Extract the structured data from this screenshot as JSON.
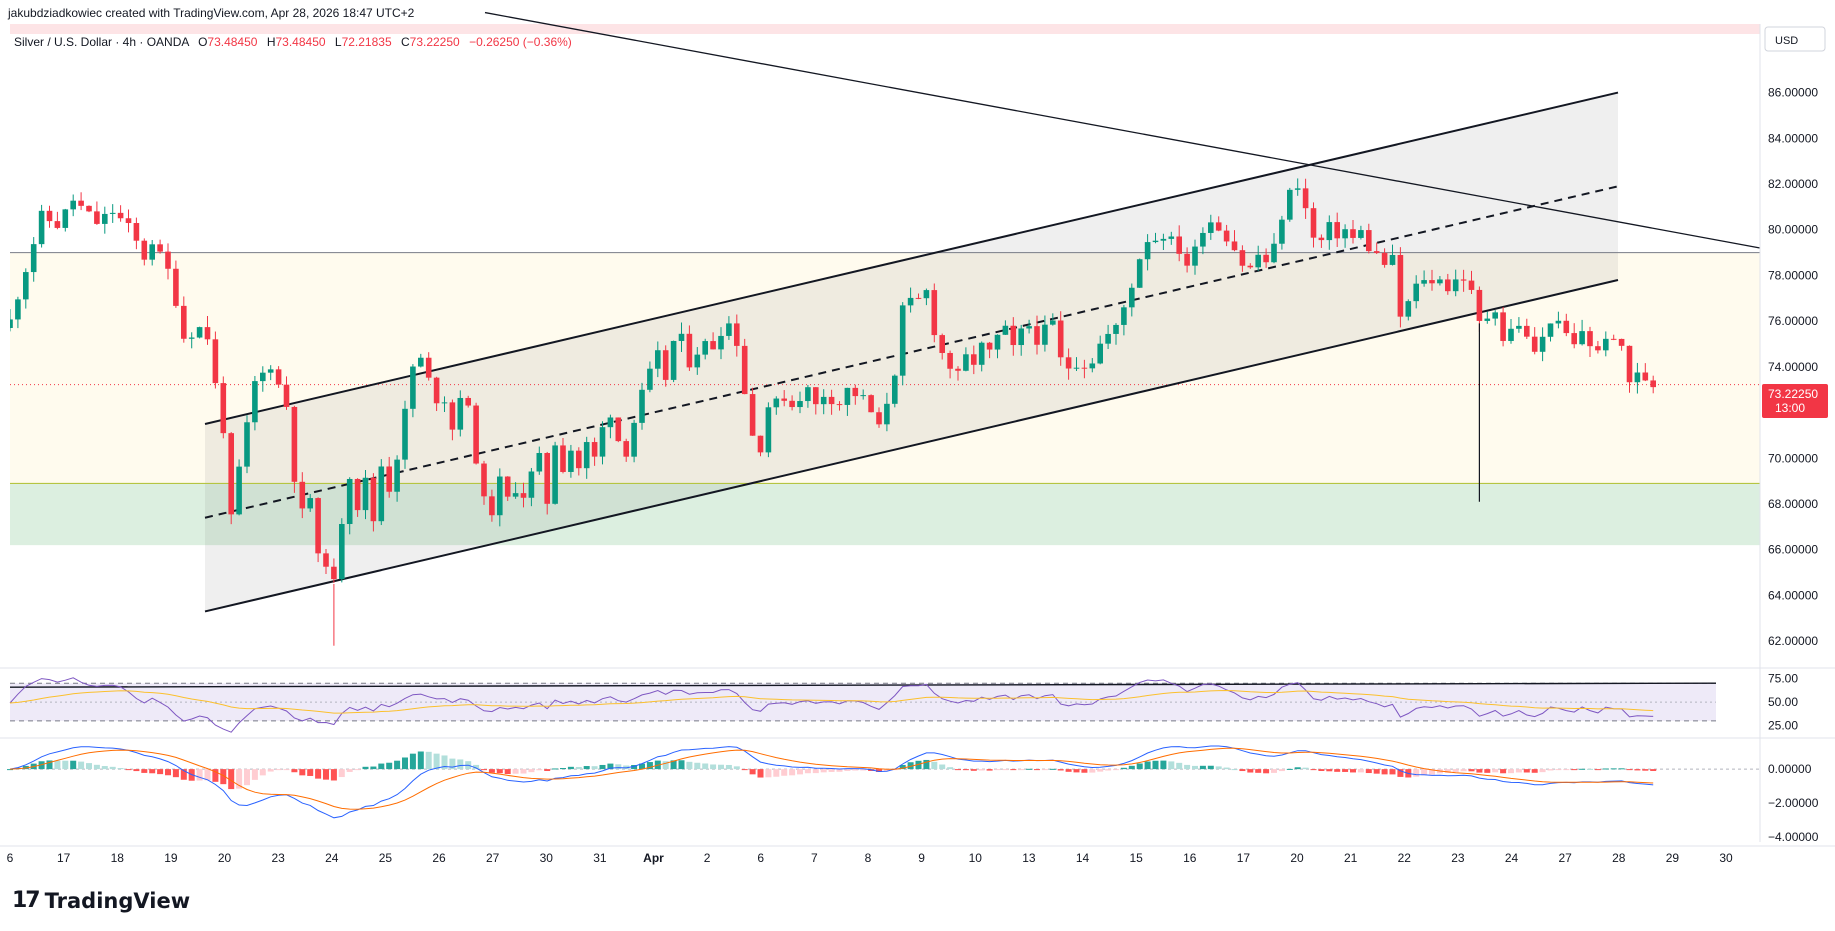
{
  "header": {
    "credit": "jakubdziadkowiec created with TradingView.com, Apr 28, 2026 18:47 UTC+2"
  },
  "symbol_line": {
    "name": "Silver / U.S. Dollar · 4h · OANDA",
    "o_label": "O",
    "o": "73.48450",
    "h_label": "H",
    "h": "73.48450",
    "l_label": "L",
    "l": "72.21835",
    "c_label": "C",
    "c": "73.22250",
    "change": "−0.26250 (−0.36%)"
  },
  "currency": "USD",
  "last_price": {
    "value": "73.22250",
    "countdown": "13:00"
  },
  "logo": {
    "text": "TradingView"
  },
  "colors": {
    "up": "#089981",
    "down": "#f23645",
    "rsi": "#7e57c2",
    "rsi_ma": "#fbc02d",
    "macd": "#2962ff",
    "signal": "#ff6d00"
  },
  "chart_data": [
    {
      "type": "candlestick",
      "title": "Silver / U.S. Dollar · 4h · OANDA",
      "ylim": [
        61,
        89
      ],
      "yticks": [
        "62.00000",
        "64.00000",
        "66.00000",
        "68.00000",
        "70.00000",
        "72.00000",
        "74.00000",
        "76.00000",
        "78.00000",
        "80.00000",
        "82.00000",
        "84.00000",
        "86.00000"
      ],
      "xticks": [
        "6",
        "17",
        "18",
        "19",
        "20",
        "23",
        "24",
        "25",
        "26",
        "27",
        "30",
        "31",
        "Apr",
        "2",
        "6",
        "7",
        "8",
        "9",
        "10",
        "13",
        "14",
        "15",
        "16",
        "17",
        "20",
        "21",
        "22",
        "23",
        "24",
        "27",
        "28",
        "29",
        "30"
      ],
      "close_path": [
        [
          0,
          76.0
        ],
        [
          4,
          80.6
        ],
        [
          6,
          80.2
        ],
        [
          8,
          81.3
        ],
        [
          11,
          80.3
        ],
        [
          13,
          80.8
        ],
        [
          15,
          80.1
        ],
        [
          17,
          78.8
        ],
        [
          18,
          79.5
        ],
        [
          20,
          78.2
        ],
        [
          21,
          76.9
        ],
        [
          22,
          75.3
        ],
        [
          24,
          75.7
        ],
        [
          25,
          75.3
        ],
        [
          26,
          73.2
        ],
        [
          27,
          71.3
        ],
        [
          28,
          67.3
        ],
        [
          29,
          69.5
        ],
        [
          31,
          73.3
        ],
        [
          33,
          74.1
        ],
        [
          34,
          73.2
        ],
        [
          35,
          72.3
        ],
        [
          36,
          69.2
        ],
        [
          37,
          67.6
        ],
        [
          38,
          68.3
        ],
        [
          39,
          65.6
        ],
        [
          40,
          65.5
        ],
        [
          41,
          64.5
        ],
        [
          42,
          67.3
        ],
        [
          43,
          69.3
        ],
        [
          44,
          67.9
        ],
        [
          45,
          69.0
        ],
        [
          46,
          67.3
        ],
        [
          47,
          69.7
        ],
        [
          48,
          68.7
        ],
        [
          49,
          70.1
        ],
        [
          50,
          72.0
        ],
        [
          51,
          74.0
        ],
        [
          52,
          74.3
        ],
        [
          53,
          73.4
        ],
        [
          54,
          72.6
        ],
        [
          55,
          72.6
        ],
        [
          56,
          71.3
        ],
        [
          57,
          72.8
        ],
        [
          58,
          72.1
        ],
        [
          59,
          70.0
        ],
        [
          60,
          68.1
        ],
        [
          61,
          67.7
        ],
        [
          62,
          69.0
        ],
        [
          63,
          68.2
        ],
        [
          64,
          68.7
        ],
        [
          65,
          68.4
        ],
        [
          66,
          69.3
        ],
        [
          67,
          70.0
        ],
        [
          68,
          68.1
        ],
        [
          69,
          70.7
        ],
        [
          70,
          69.6
        ],
        [
          71,
          70.4
        ],
        [
          72,
          69.6
        ],
        [
          73,
          70.6
        ],
        [
          74,
          70.0
        ],
        [
          75,
          71.3
        ],
        [
          76,
          72.0
        ],
        [
          77,
          70.8
        ],
        [
          78,
          70.3
        ],
        [
          79,
          71.6
        ],
        [
          80,
          72.8
        ],
        [
          81,
          73.7
        ],
        [
          82,
          74.5
        ],
        [
          83,
          73.5
        ],
        [
          84,
          75.1
        ],
        [
          85,
          75.2
        ],
        [
          86,
          74.2
        ],
        [
          87,
          74.7
        ],
        [
          88,
          75.0
        ],
        [
          89,
          74.9
        ],
        [
          90,
          75.6
        ],
        [
          91,
          75.9
        ],
        [
          92,
          75.1
        ],
        [
          93,
          72.9
        ],
        [
          94,
          71.0
        ],
        [
          95,
          70.5
        ],
        [
          96,
          72.3
        ],
        [
          97,
          72.4
        ],
        [
          98,
          72.7
        ],
        [
          99,
          72.3
        ],
        [
          100,
          72.7
        ],
        [
          101,
          73.0
        ],
        [
          102,
          72.3
        ],
        [
          103,
          72.8
        ],
        [
          104,
          72.6
        ],
        [
          105,
          72.4
        ],
        [
          106,
          73.0
        ],
        [
          107,
          72.8
        ],
        [
          108,
          72.6
        ],
        [
          109,
          72.0
        ],
        [
          110,
          71.3
        ],
        [
          111,
          72.5
        ],
        [
          112,
          73.8
        ],
        [
          113,
          76.5
        ],
        [
          114,
          76.8
        ],
        [
          115,
          76.9
        ],
        [
          116,
          77.3
        ],
        [
          117,
          75.6
        ],
        [
          118,
          74.6
        ],
        [
          119,
          74.0
        ],
        [
          120,
          73.6
        ],
        [
          121,
          74.4
        ],
        [
          122,
          74.2
        ],
        [
          123,
          74.9
        ],
        [
          124,
          74.6
        ],
        [
          125,
          75.3
        ],
        [
          126,
          75.6
        ],
        [
          127,
          74.8
        ],
        [
          128,
          75.5
        ],
        [
          129,
          75.8
        ],
        [
          130,
          75.2
        ],
        [
          131,
          75.6
        ],
        [
          132,
          75.9
        ],
        [
          133,
          74.3
        ],
        [
          134,
          74.0
        ],
        [
          135,
          74.2
        ],
        [
          136,
          74.1
        ],
        [
          137,
          74.3
        ],
        [
          138,
          75.0
        ],
        [
          139,
          75.4
        ],
        [
          140,
          75.7
        ],
        [
          141,
          76.6
        ],
        [
          142,
          77.6
        ],
        [
          143,
          78.8
        ],
        [
          144,
          79.6
        ],
        [
          145,
          79.6
        ],
        [
          146,
          79.8
        ],
        [
          147,
          79.5
        ],
        [
          148,
          79.1
        ],
        [
          149,
          78.5
        ],
        [
          150,
          79.1
        ],
        [
          151,
          80.1
        ],
        [
          152,
          80.4
        ],
        [
          153,
          80.1
        ],
        [
          154,
          79.7
        ],
        [
          155,
          79.2
        ],
        [
          156,
          78.5
        ],
        [
          157,
          78.3
        ],
        [
          158,
          78.9
        ],
        [
          159,
          78.6
        ],
        [
          160,
          79.2
        ],
        [
          161,
          80.6
        ],
        [
          162,
          81.6
        ],
        [
          163,
          82.0
        ],
        [
          164,
          80.9
        ],
        [
          165,
          79.6
        ],
        [
          166,
          79.5
        ],
        [
          167,
          80.1
        ],
        [
          168,
          79.8
        ],
        [
          169,
          80.0
        ],
        [
          170,
          79.6
        ],
        [
          171,
          79.9
        ],
        [
          172,
          79.2
        ],
        [
          173,
          78.9
        ],
        [
          174,
          78.5
        ],
        [
          175,
          78.7
        ],
        [
          176,
          76.2
        ],
        [
          177,
          76.8
        ],
        [
          178,
          77.5
        ],
        [
          179,
          77.9
        ],
        [
          180,
          77.6
        ],
        [
          181,
          78.0
        ],
        [
          182,
          77.4
        ],
        [
          183,
          77.8
        ],
        [
          184,
          77.9
        ],
        [
          185,
          77.2
        ],
        [
          186,
          75.9
        ],
        [
          187,
          76.2
        ],
        [
          188,
          76.6
        ],
        [
          189,
          75.2
        ],
        [
          190,
          75.6
        ],
        [
          191,
          75.9
        ],
        [
          192,
          75.2
        ],
        [
          193,
          74.7
        ],
        [
          194,
          75.2
        ],
        [
          195,
          76.1
        ],
        [
          196,
          75.8
        ],
        [
          197,
          75.4
        ],
        [
          198,
          74.9
        ],
        [
          199,
          75.6
        ],
        [
          200,
          75.0
        ],
        [
          201,
          74.6
        ],
        [
          202,
          75.4
        ],
        [
          203,
          75.0
        ],
        [
          204,
          74.9
        ],
        [
          205,
          73.4
        ],
        [
          206,
          73.6
        ],
        [
          207,
          73.5
        ],
        [
          208,
          73.22
        ]
      ],
      "trendlines": {
        "channel_upper": {
          "from": [
            "Mar 19",
            71.5
          ],
          "to": [
            "Apr 28",
            86.0
          ]
        },
        "channel_lower": {
          "from": [
            "Mar 19",
            63.3
          ],
          "to": [
            "Apr 28",
            77.8
          ]
        },
        "channel_mid": {
          "from": [
            "Mar 19",
            67.4
          ],
          "to": [
            "Apr 28",
            81.9
          ],
          "style": "dashed"
        },
        "descending": {
          "from": [
            "Mar 12",
            89.5
          ],
          "to": [
            "Apr 30",
            79.2
          ]
        }
      },
      "horizontal_levels": [
        79.0,
        68.9
      ],
      "zones": [
        {
          "from": 66.2,
          "to": 68.9,
          "color": "green"
        }
      ],
      "grid": false,
      "legend": "top-left"
    },
    {
      "type": "line",
      "name_hidden": true,
      "ylim": [
        15,
        82
      ],
      "yticks": [
        "75.00",
        "50.00",
        "25.00"
      ],
      "bands": [
        30,
        70
      ],
      "level": 68,
      "series": [
        {
          "name": "RSI"
        },
        {
          "name": "RSI MA"
        }
      ]
    },
    {
      "type": "bar",
      "ylim": [
        -4.3,
        1.6
      ],
      "yticks": [
        "0.00000",
        "−2.00000",
        "−4.00000"
      ],
      "series": [
        {
          "name": "MACD"
        },
        {
          "name": "Signal"
        },
        {
          "name": "Histogram"
        }
      ]
    }
  ]
}
